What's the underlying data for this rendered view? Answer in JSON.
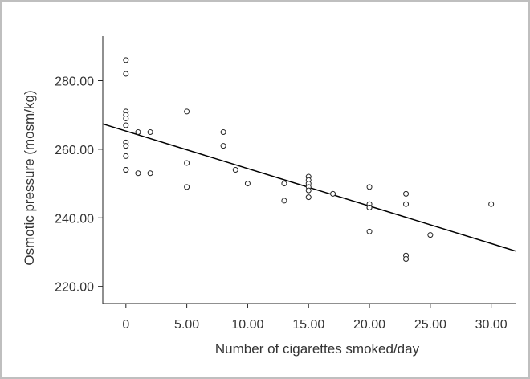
{
  "chart_data": {
    "type": "scatter",
    "xlabel": "Number of cigarettes smoked/day",
    "ylabel": "Osmotic pressure (mosm/kg)",
    "xlim": [
      -1.9,
      32
    ],
    "ylim": [
      215,
      293
    ],
    "x_ticks": [
      0,
      5,
      10,
      15,
      20,
      25,
      30
    ],
    "x_tick_labels": [
      "0",
      "5.00",
      "10.00",
      "15.00",
      "20.00",
      "25.00",
      "30.00"
    ],
    "y_ticks": [
      220,
      240,
      260,
      280
    ],
    "y_tick_labels": [
      "220.00",
      "240.00",
      "260.00",
      "280.00"
    ],
    "grid": false,
    "series": [
      {
        "x": [
          0,
          0,
          0,
          0,
          0,
          0,
          0,
          0,
          0,
          0,
          0,
          1,
          1,
          2,
          2,
          5,
          5,
          5,
          8,
          8,
          9,
          10,
          13,
          13,
          15,
          15,
          15,
          15,
          15,
          15,
          17,
          20,
          20,
          20,
          20,
          20,
          23,
          23,
          23,
          23,
          25,
          30
        ],
        "y": [
          286,
          282,
          271,
          270,
          269,
          267,
          262,
          261,
          258,
          254,
          254,
          265,
          253,
          265,
          253,
          271,
          256,
          249,
          265,
          261,
          254,
          250,
          250,
          245,
          252,
          251,
          250,
          249,
          248,
          246,
          247,
          249,
          244,
          243,
          236,
          243,
          247,
          244,
          229,
          228,
          235,
          244
        ]
      }
    ],
    "fit_line": {
      "x": [
        -1.9,
        32
      ],
      "y": [
        267.4,
        230.3
      ]
    },
    "colors": {
      "marker_stroke": "#222222",
      "line": "#000000",
      "frame": "#bfbfbf"
    }
  }
}
